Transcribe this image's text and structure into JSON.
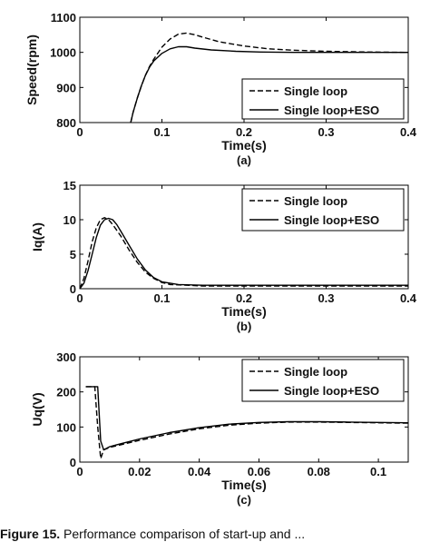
{
  "chart_data": [
    {
      "type": "line",
      "panel_label": "(a)",
      "xlabel": "Time(s)",
      "ylabel": "Speed(rpm)",
      "xlim": [
        0,
        0.4
      ],
      "ylim": [
        800,
        1100
      ],
      "xticks": [
        0,
        0.1,
        0.2,
        0.3,
        0.4
      ],
      "xtick_labels": [
        "0",
        "0.1",
        "0.2",
        "0.3",
        "0.4"
      ],
      "yticks": [
        800,
        900,
        1000,
        1100
      ],
      "ytick_labels": [
        "800",
        "900",
        "1000",
        "1100"
      ],
      "legend_position": "bottom-right",
      "grid": false,
      "series": [
        {
          "name": "Single loop",
          "style": "dashed",
          "x": [
            0.062,
            0.065,
            0.07,
            0.075,
            0.08,
            0.085,
            0.09,
            0.1,
            0.11,
            0.12,
            0.13,
            0.14,
            0.15,
            0.17,
            0.2,
            0.23,
            0.26,
            0.3,
            0.35,
            0.4
          ],
          "y": [
            800,
            830,
            870,
            905,
            935,
            960,
            980,
            1015,
            1038,
            1052,
            1055,
            1050,
            1043,
            1030,
            1018,
            1010,
            1006,
            1003,
            1001,
            1000
          ]
        },
        {
          "name": "Single loop+ESO",
          "style": "solid",
          "x": [
            0.062,
            0.065,
            0.07,
            0.075,
            0.08,
            0.085,
            0.09,
            0.1,
            0.11,
            0.12,
            0.13,
            0.14,
            0.16,
            0.19,
            0.22,
            0.26,
            0.3,
            0.35,
            0.4
          ],
          "y": [
            800,
            830,
            870,
            905,
            935,
            958,
            975,
            997,
            1010,
            1016,
            1016,
            1012,
            1007,
            1003,
            1001,
            1000,
            1000,
            1000,
            1000
          ]
        }
      ]
    },
    {
      "type": "line",
      "panel_label": "(b)",
      "xlabel": "Time(s)",
      "ylabel": "Iq(A)",
      "xlim": [
        0,
        0.4
      ],
      "ylim": [
        0,
        15
      ],
      "xticks": [
        0,
        0.1,
        0.2,
        0.3,
        0.4
      ],
      "xtick_labels": [
        "0",
        "0.1",
        "0.2",
        "0.3",
        "0.4"
      ],
      "yticks": [
        0,
        5,
        10,
        15
      ],
      "ytick_labels": [
        "0",
        "5",
        "10",
        "15"
      ],
      "legend_position": "top-right",
      "grid": false,
      "series": [
        {
          "name": "Single loop",
          "style": "dashed",
          "x": [
            0,
            0.005,
            0.01,
            0.015,
            0.02,
            0.025,
            0.03,
            0.035,
            0.04,
            0.05,
            0.06,
            0.07,
            0.08,
            0.09,
            0.1,
            0.11,
            0.13,
            0.15,
            0.2,
            0.3,
            0.4
          ],
          "y": [
            0,
            1.5,
            4,
            6.8,
            8.8,
            10,
            10.3,
            10,
            9.3,
            7.6,
            5.6,
            3.8,
            2.4,
            1.5,
            0.9,
            0.6,
            0.5,
            0.4,
            0.4,
            0.4,
            0.4
          ]
        },
        {
          "name": "Single loop+ESO",
          "style": "solid",
          "x": [
            0,
            0.005,
            0.01,
            0.015,
            0.02,
            0.025,
            0.03,
            0.035,
            0.04,
            0.045,
            0.05,
            0.06,
            0.07,
            0.08,
            0.09,
            0.1,
            0.12,
            0.15,
            0.2,
            0.3,
            0.4
          ],
          "y": [
            0,
            0.8,
            2.6,
            5,
            7.4,
            9.2,
            10,
            10.2,
            10,
            9.3,
            8.3,
            6.3,
            4.3,
            2.7,
            1.6,
            1,
            0.6,
            0.5,
            0.5,
            0.5,
            0.5
          ]
        }
      ]
    },
    {
      "type": "line",
      "panel_label": "(c)",
      "xlabel": "Time(s)",
      "ylabel": "Uq(V)",
      "xlim": [
        0,
        0.11
      ],
      "ylim": [
        0,
        300
      ],
      "xticks": [
        0,
        0.02,
        0.04,
        0.06,
        0.08,
        0.1
      ],
      "xtick_labels": [
        "0",
        "0.02",
        "0.04",
        "0.06",
        "0.08",
        "0.1"
      ],
      "yticks": [
        0,
        100,
        200,
        300
      ],
      "ytick_labels": [
        "0",
        "100",
        "200",
        "300"
      ],
      "legend_position": "top-right",
      "grid": false,
      "series": [
        {
          "name": "Single loop",
          "style": "dashed",
          "x": [
            0.002,
            0.005,
            0.006,
            0.007,
            0.008,
            0.01,
            0.015,
            0.02,
            0.03,
            0.04,
            0.05,
            0.06,
            0.07,
            0.08,
            0.09,
            0.1,
            0.11
          ],
          "y": [
            215,
            215,
            100,
            10,
            35,
            42,
            52,
            62,
            80,
            95,
            105,
            111,
            114,
            114,
            113,
            112,
            111
          ]
        },
        {
          "name": "Single loop+ESO",
          "style": "solid",
          "x": [
            0.002,
            0.006,
            0.007,
            0.008,
            0.01,
            0.015,
            0.02,
            0.03,
            0.04,
            0.05,
            0.06,
            0.07,
            0.08,
            0.09,
            0.1,
            0.11
          ],
          "y": [
            215,
            215,
            60,
            35,
            44,
            55,
            66,
            84,
            98,
            108,
            113,
            115,
            115,
            114,
            113,
            112
          ]
        }
      ]
    }
  ],
  "caption": {
    "label": "Figure 15.",
    "text": "Performance comparison of start-up and ..."
  }
}
